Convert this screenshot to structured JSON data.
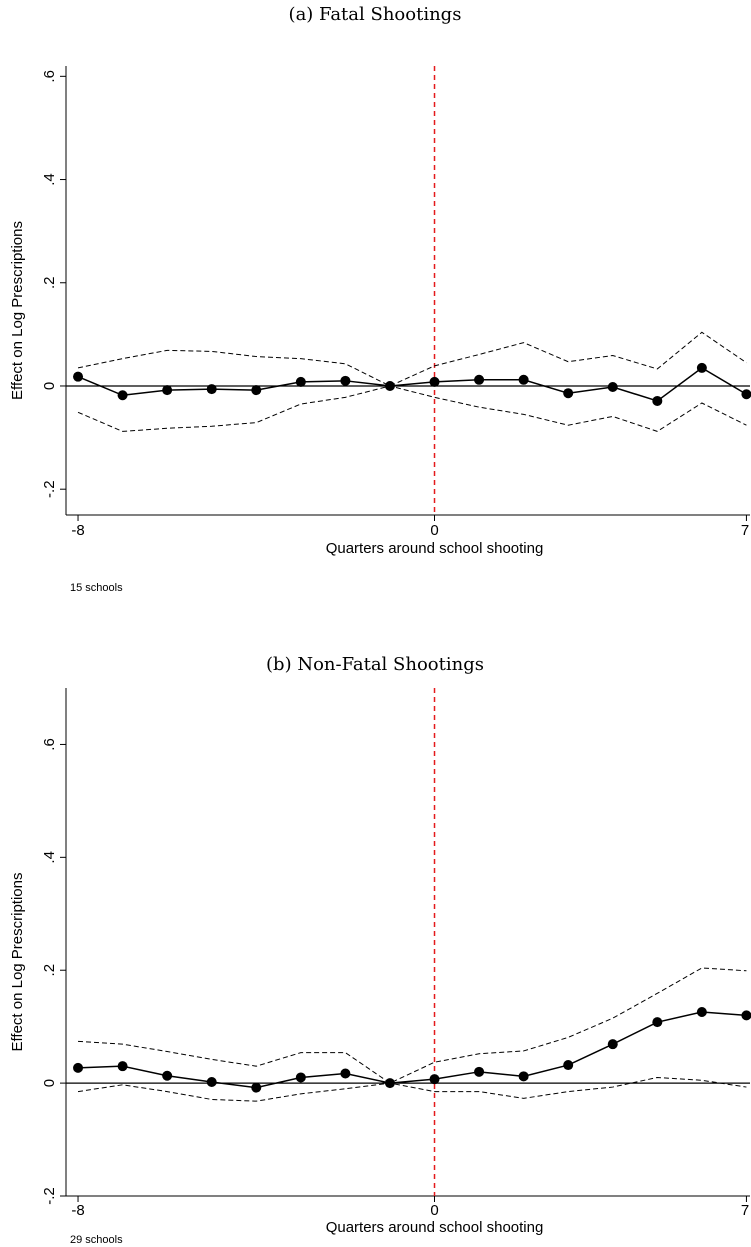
{
  "chart_data": [
    {
      "type": "line",
      "title": "(a) Fatal Shootings",
      "ylabel": "Effect on Log Prescriptions",
      "xlabel": "Quarters around school shooting",
      "note": "15 schools",
      "x": [
        -8,
        -7,
        -6,
        -5,
        -4,
        -3,
        -2,
        -1,
        0,
        1,
        2,
        3,
        4,
        5,
        6,
        7
      ],
      "series": [
        {
          "color": "#000000",
          "dashed": false,
          "markers": true,
          "values": [
            0.018,
            -0.018,
            -0.008,
            -0.006,
            -0.008,
            0.008,
            0.01,
            0,
            0.008,
            0.012,
            0.012,
            -0.014,
            -0.002,
            -0.029,
            0.035,
            -0.016
          ]
        },
        {
          "color": "#000000",
          "dashed": true,
          "markers": false,
          "values": [
            0.035,
            0.053,
            0.069,
            0.067,
            0.057,
            0.053,
            0.043,
            0,
            0.039,
            0.061,
            0.084,
            0.047,
            0.059,
            0.033,
            0.104,
            0.045
          ]
        },
        {
          "color": "#000000",
          "dashed": true,
          "markers": false,
          "values": [
            -0.051,
            -0.088,
            -0.082,
            -0.078,
            -0.071,
            -0.035,
            -0.022,
            0,
            -0.022,
            -0.041,
            -0.055,
            -0.076,
            -0.059,
            -0.088,
            -0.033,
            -0.076
          ]
        }
      ],
      "xlim": [
        -8.27,
        7.08
      ],
      "ylim": [
        -0.25,
        0.62
      ],
      "xticks": [
        -8,
        0,
        7
      ],
      "yticks": [
        {
          "value": -0.2,
          "label": "-.2"
        },
        0,
        {
          "value": 0.2,
          "label": ".2"
        },
        {
          "value": 0.4,
          "label": ".4"
        },
        {
          "value": 0.6,
          "label": ".6"
        }
      ],
      "vline": {
        "x": 0,
        "color": "#e41a1c"
      },
      "hline": 0
    },
    {
      "type": "line",
      "title": "(b) Non-Fatal Shootings",
      "ylabel": "Effect on Log Prescriptions",
      "xlabel": "Quarters around school shooting",
      "note": "29 schools",
      "x": [
        -8,
        -7,
        -6,
        -5,
        -4,
        -3,
        -2,
        -1,
        0,
        1,
        2,
        3,
        4,
        5,
        6,
        7
      ],
      "series": [
        {
          "color": "#000000",
          "dashed": false,
          "markers": true,
          "values": [
            0.027,
            0.03,
            0.013,
            0.002,
            -0.008,
            0.01,
            0.017,
            0,
            0.007,
            0.02,
            0.012,
            0.032,
            0.069,
            0.108,
            0.126,
            0.12
          ]
        },
        {
          "color": "#000000",
          "dashed": true,
          "markers": false,
          "values": [
            0.074,
            0.069,
            0.056,
            0.042,
            0.03,
            0.054,
            0.054,
            0,
            0.037,
            0.052,
            0.057,
            0.081,
            0.115,
            0.159,
            0.204,
            0.199
          ]
        },
        {
          "color": "#000000",
          "dashed": true,
          "markers": false,
          "values": [
            -0.015,
            -0.003,
            -0.015,
            -0.029,
            -0.032,
            -0.019,
            -0.01,
            0,
            -0.015,
            -0.015,
            -0.027,
            -0.015,
            -0.007,
            0.01,
            0.005,
            -0.007
          ]
        }
      ],
      "xlim": [
        -8.27,
        7.08
      ],
      "ylim": [
        -0.2,
        0.7
      ],
      "xticks": [
        -8,
        0,
        7
      ],
      "yticks": [
        {
          "value": -0.2,
          "label": "-.2"
        },
        0,
        {
          "value": 0.2,
          "label": ".2"
        },
        {
          "value": 0.4,
          "label": ".4"
        },
        {
          "value": 0.6,
          "label": ".6"
        }
      ],
      "vline": {
        "x": 0,
        "color": "#e41a1c"
      },
      "hline": 0
    }
  ]
}
